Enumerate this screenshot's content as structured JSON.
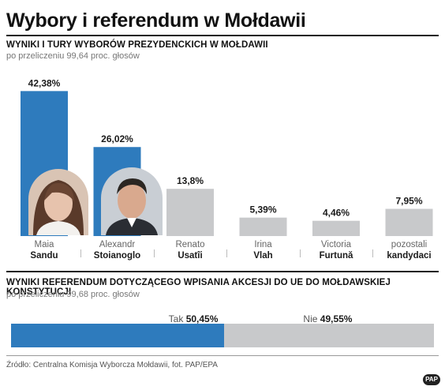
{
  "title": "Wybory i referendum w Mołdawii",
  "election": {
    "heading": "WYNIKI I TURY WYBORÓW PREZYDENCKICH W MOŁDAWII",
    "subheading": "po przeliczeniu 99,64 proc. głosów"
  },
  "referendum": {
    "heading": "WYNIKI REFERENDUM DOTYCZĄCEGO WPISANIA AKCESJI DO UE DO MOŁDAWSKIEJ KONSTYTUCJI",
    "subheading": "po przeliczeniu 99,68 proc. głosów",
    "yes_label": "Tak",
    "yes_value": "50,45%",
    "no_label": "Nie",
    "no_value": "49,55%"
  },
  "source": "Źródło: Centralna Komisja Wyborcza Mołdawii, fot. PAP/EPA",
  "logo": "PAP",
  "colors": {
    "highlight": "#2e7bbd",
    "other": "#c8c9cb"
  },
  "chart_data": [
    {
      "type": "bar",
      "categories": [
        "Maia Sandu",
        "Alexandr Stoianoglo",
        "Renato Usatîi",
        "Irina Vlah",
        "Victoria Furtună",
        "pozostali kandydaci"
      ],
      "first_names": [
        "Maia",
        "Alexandr",
        "Renato",
        "Irina",
        "Victoria",
        "pozostali"
      ],
      "last_names": [
        "Sandu",
        "Stoianoglo",
        "Usatîi",
        "Vlah",
        "Furtună",
        "kandydaci"
      ],
      "values": [
        42.38,
        26.02,
        13.8,
        5.39,
        4.46,
        7.95
      ],
      "value_labels": [
        "42,38%",
        "26,02%",
        "13,8%",
        "5,39%",
        "4,46%",
        "7,95%"
      ],
      "highlighted": [
        true,
        true,
        false,
        false,
        false,
        false
      ],
      "ylim": [
        0,
        45
      ]
    },
    {
      "type": "bar",
      "orientation": "horizontal-stacked",
      "categories": [
        "Tak",
        "Nie"
      ],
      "values": [
        50.45,
        49.55
      ]
    }
  ]
}
